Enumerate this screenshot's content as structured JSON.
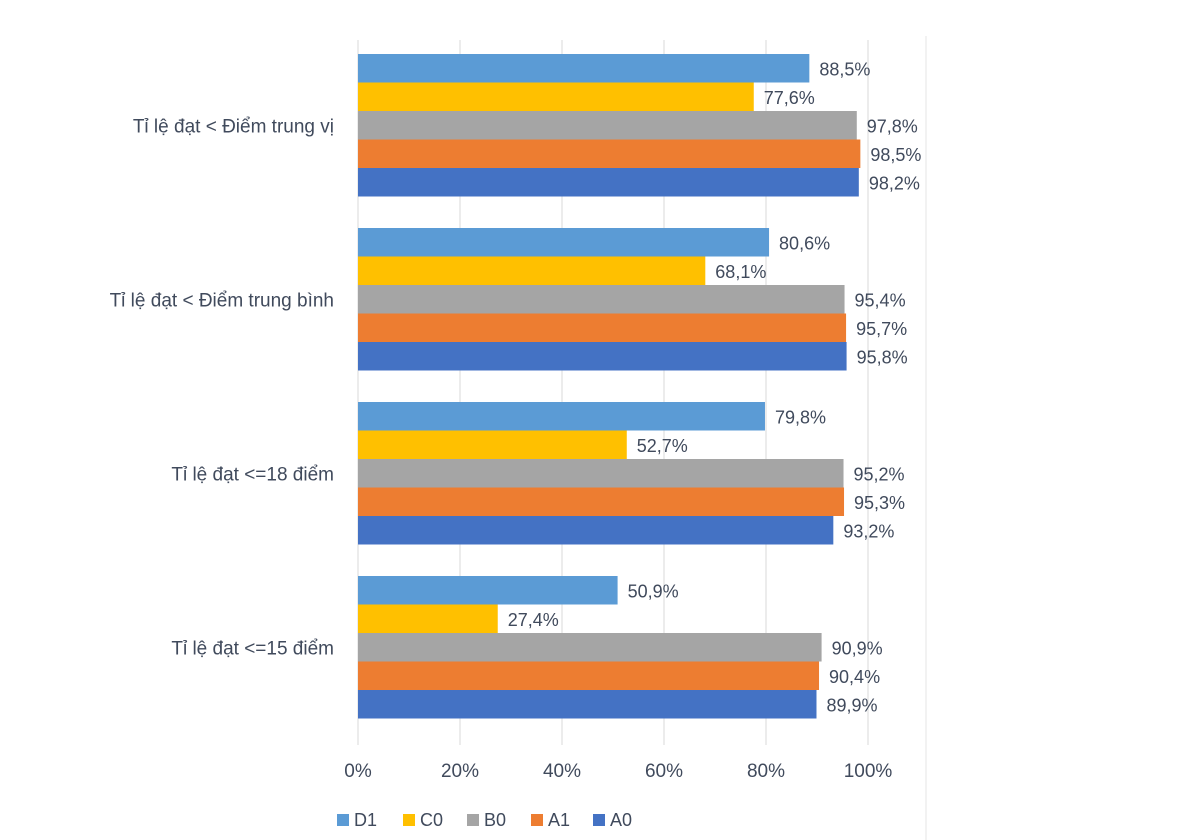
{
  "chart_data": {
    "type": "bar",
    "orientation": "horizontal",
    "categories": [
      "Tỉ lệ đạt < Điểm trung vị",
      "Tỉ lệ đạt < Điểm trung bình",
      "Tỉ lệ đạt <=18 điểm",
      "Tỉ lệ đạt <=15 điểm"
    ],
    "series": [
      {
        "name": "D1",
        "color": "#5b9bd5",
        "values": [
          88.5,
          80.6,
          79.8,
          50.9
        ],
        "labels": [
          "88,5%",
          "80,6%",
          "79,8%",
          "50,9%"
        ]
      },
      {
        "name": "C0",
        "color": "#ffc000",
        "values": [
          77.6,
          68.1,
          52.7,
          27.4
        ],
        "labels": [
          "77,6%",
          "68,1%",
          "52,7%",
          "27,4%"
        ]
      },
      {
        "name": "B0",
        "color": "#a5a5a5",
        "values": [
          97.8,
          95.4,
          95.2,
          90.9
        ],
        "labels": [
          "97,8%",
          "95,4%",
          "95,2%",
          "90,9%"
        ]
      },
      {
        "name": "A1",
        "color": "#ed7d31",
        "values": [
          98.5,
          95.7,
          95.3,
          90.4
        ],
        "labels": [
          "98,5%",
          "95,7%",
          "95,3%",
          "90,4%"
        ]
      },
      {
        "name": "A0",
        "color": "#4472c4",
        "values": [
          98.2,
          95.8,
          93.2,
          89.9
        ],
        "labels": [
          "98,2%",
          "95,8%",
          "93,2%",
          "89,9%"
        ]
      }
    ],
    "x_ticks": [
      "0%",
      "20%",
      "40%",
      "60%",
      "80%",
      "100%"
    ],
    "xlim": [
      0,
      100
    ],
    "grid": true,
    "legend": "bottom"
  }
}
